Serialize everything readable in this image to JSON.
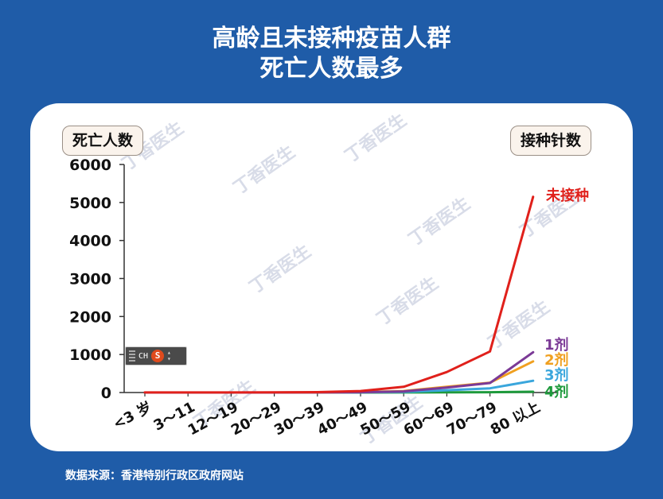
{
  "title": {
    "line1": "高龄且未接种疫苗人群",
    "line2": "死亡人数最多"
  },
  "source": "数据来源：香港特别行政区政府网站",
  "ime": {
    "lang": "CH",
    "logo": "S"
  },
  "watermark": "丁香医生",
  "colors": {
    "background": "#1f5ca8",
    "unvaccinated": "#e0201b",
    "dose1": "#7b3a96",
    "dose2": "#f0a020",
    "dose3": "#3aa6dc",
    "dose4": "#1e9a3c"
  },
  "chart_data": {
    "type": "line",
    "ylabel": "死亡人数",
    "legend_title": "接种针数",
    "ylim": [
      0,
      6000
    ],
    "yticks": [
      "0",
      "1000",
      "2000",
      "3000",
      "4000",
      "5000",
      "6000"
    ],
    "yticks_values": [
      0,
      1000,
      2000,
      3000,
      4000,
      5000,
      6000
    ],
    "categories": [
      "<3 岁",
      "3～11",
      "12～19",
      "20～29",
      "30～39",
      "40～49",
      "50～59",
      "60～69",
      "70～79",
      "80 以上"
    ],
    "series": [
      {
        "name": "未接种",
        "color": "#e0201b",
        "values": [
          3,
          2,
          3,
          5,
          10,
          40,
          150,
          540,
          1080,
          5150
        ]
      },
      {
        "name": "1剂",
        "color": "#7b3a96",
        "values": [
          0,
          0,
          0,
          1,
          2,
          8,
          30,
          130,
          250,
          1060
        ]
      },
      {
        "name": "2剂",
        "color": "#f0a020",
        "values": [
          0,
          0,
          0,
          1,
          2,
          10,
          40,
          150,
          260,
          820
        ]
      },
      {
        "name": "3剂",
        "color": "#3aa6dc",
        "values": [
          0,
          0,
          0,
          0,
          1,
          4,
          15,
          60,
          110,
          310
        ]
      },
      {
        "name": "4剂",
        "color": "#1e9a3c",
        "values": [
          0,
          0,
          0,
          0,
          0,
          1,
          2,
          5,
          8,
          20
        ]
      }
    ]
  }
}
